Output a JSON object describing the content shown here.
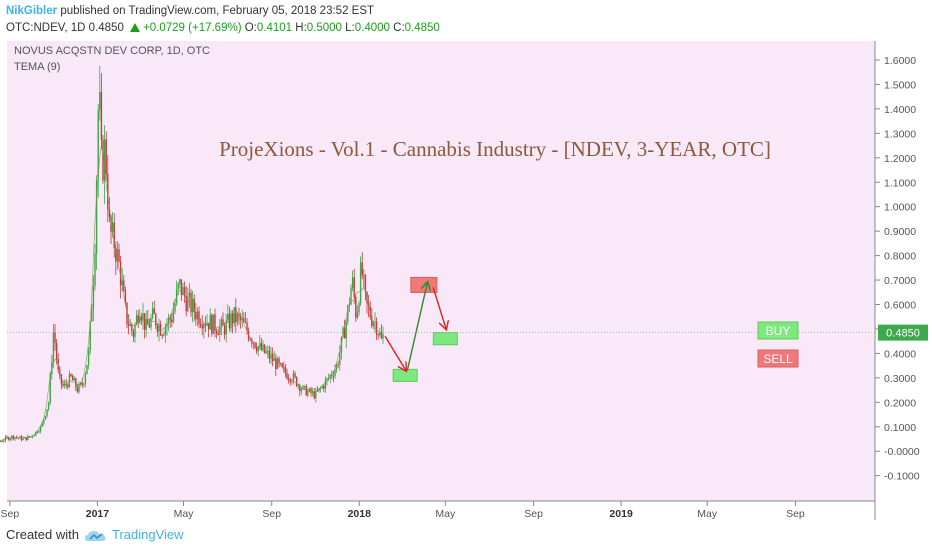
{
  "header": {
    "author": "NikGibler",
    "published_text": "published on TradingView.com, February 05, 2018 23:52 EST",
    "symbol": "OTC:NDEV, 1D",
    "last": "0.4850",
    "change": "+0.0729 (+17.69%)",
    "o_label": "O:",
    "o_val": "0.4101",
    "h_label": "H:",
    "h_val": "0.5000",
    "l_label": "L:",
    "l_val": "0.4000",
    "c_label": "C:",
    "c_val": "0.4850"
  },
  "chart_data": {
    "type": "candlestick",
    "instrument_title": "NOVUS ACQSTN  DEV  CORP, 1D, OTC",
    "indicator_label": "TEMA (9)",
    "annotation_title": "ProjeXions - Vol.1 - Cannabis Industry - [NDEV, 3-YEAR, OTC]",
    "y_ticks": [
      "1.6000",
      "1.5000",
      "1.4000",
      "1.3000",
      "1.2000",
      "1.1000",
      "1.0000",
      "0.9000",
      "0.8000",
      "0.7000",
      "0.6000",
      "0.5000",
      "0.4000",
      "0.3000",
      "0.2000",
      "0.1000",
      "-0.0000",
      "-0.1000"
    ],
    "y_range": [
      -0.15,
      1.65
    ],
    "x_ticks": [
      "Sep",
      "2017",
      "May",
      "Sep",
      "2018",
      "May",
      "Sep",
      "2019",
      "May",
      "Sep"
    ],
    "x_tick_bold": [
      false,
      true,
      false,
      false,
      true,
      false,
      false,
      true,
      false,
      false
    ],
    "last_price_label": "0.4850",
    "last_price": 0.485,
    "legend": {
      "buy": "BUY",
      "sell": "SELL"
    },
    "colors": {
      "up": "#3aa845",
      "down": "#c23b3b",
      "background": "#f8e8f8",
      "buy_box": "#7de87d",
      "sell_box": "#f07878",
      "price_tag": "#3ea84a",
      "tema": "#8b8b4a"
    },
    "price_path": [
      [
        "2016-07-01",
        0.02
      ],
      [
        "2016-07-20",
        0.025
      ],
      [
        "2016-08-10",
        0.03
      ],
      [
        "2016-08-25",
        0.05
      ],
      [
        "2016-09-05",
        0.06
      ],
      [
        "2016-09-20",
        0.05
      ],
      [
        "2016-10-01",
        0.06
      ],
      [
        "2016-10-15",
        0.1
      ],
      [
        "2016-10-25",
        0.2
      ],
      [
        "2016-11-01",
        0.5
      ],
      [
        "2016-11-08",
        0.3
      ],
      [
        "2016-11-15",
        0.26
      ],
      [
        "2016-11-25",
        0.3
      ],
      [
        "2016-12-05",
        0.25
      ],
      [
        "2016-12-12",
        0.28
      ],
      [
        "2016-12-20",
        0.4
      ],
      [
        "2016-12-28",
        0.8
      ],
      [
        "2017-01-03",
        1.5
      ],
      [
        "2017-01-07",
        1.15
      ],
      [
        "2017-01-12",
        1.25
      ],
      [
        "2017-01-18",
        0.9
      ],
      [
        "2017-01-25",
        0.85
      ],
      [
        "2017-02-01",
        0.75
      ],
      [
        "2017-02-10",
        0.55
      ],
      [
        "2017-02-20",
        0.48
      ],
      [
        "2017-03-01",
        0.6
      ],
      [
        "2017-03-10",
        0.5
      ],
      [
        "2017-03-20",
        0.55
      ],
      [
        "2017-04-01",
        0.5
      ],
      [
        "2017-04-15",
        0.55
      ],
      [
        "2017-04-25",
        0.68
      ],
      [
        "2017-05-05",
        0.62
      ],
      [
        "2017-05-15",
        0.58
      ],
      [
        "2017-05-25",
        0.55
      ],
      [
        "2017-06-10",
        0.52
      ],
      [
        "2017-06-25",
        0.5
      ],
      [
        "2017-07-10",
        0.55
      ],
      [
        "2017-07-20",
        0.53
      ],
      [
        "2017-08-01",
        0.48
      ],
      [
        "2017-08-15",
        0.42
      ],
      [
        "2017-09-01",
        0.38
      ],
      [
        "2017-09-15",
        0.33
      ],
      [
        "2017-10-01",
        0.3
      ],
      [
        "2017-10-15",
        0.25
      ],
      [
        "2017-11-01",
        0.23
      ],
      [
        "2017-11-15",
        0.28
      ],
      [
        "2017-12-01",
        0.35
      ],
      [
        "2017-12-15",
        0.55
      ],
      [
        "2017-12-22",
        0.7
      ],
      [
        "2017-12-28",
        0.55
      ],
      [
        "2018-01-04",
        0.75
      ],
      [
        "2018-01-10",
        0.6
      ],
      [
        "2018-01-18",
        0.55
      ],
      [
        "2018-01-25",
        0.52
      ],
      [
        "2018-02-01",
        0.45
      ],
      [
        "2018-02-05",
        0.485
      ]
    ],
    "projection": {
      "arrows": [
        {
          "from": [
            "2018-02-06",
            0.47
          ],
          "to": [
            "2018-03-07",
            0.33
          ],
          "color": "#e02020"
        },
        {
          "from": [
            "2018-03-09",
            0.33
          ],
          "to": [
            "2018-04-06",
            0.69
          ],
          "color": "#2b8a2b"
        },
        {
          "from": [
            "2018-04-14",
            0.67
          ],
          "to": [
            "2018-05-02",
            0.5
          ],
          "color": "#e02020"
        }
      ],
      "boxes": [
        {
          "kind": "sell",
          "date": "2018-04-01",
          "price": 0.68
        },
        {
          "kind": "buy",
          "date": "2018-03-06",
          "price": 0.31
        },
        {
          "kind": "buy",
          "date": "2018-05-01",
          "price": 0.46
        }
      ]
    }
  },
  "footer": {
    "created_with": "Created with",
    "brand": "TradingView"
  }
}
